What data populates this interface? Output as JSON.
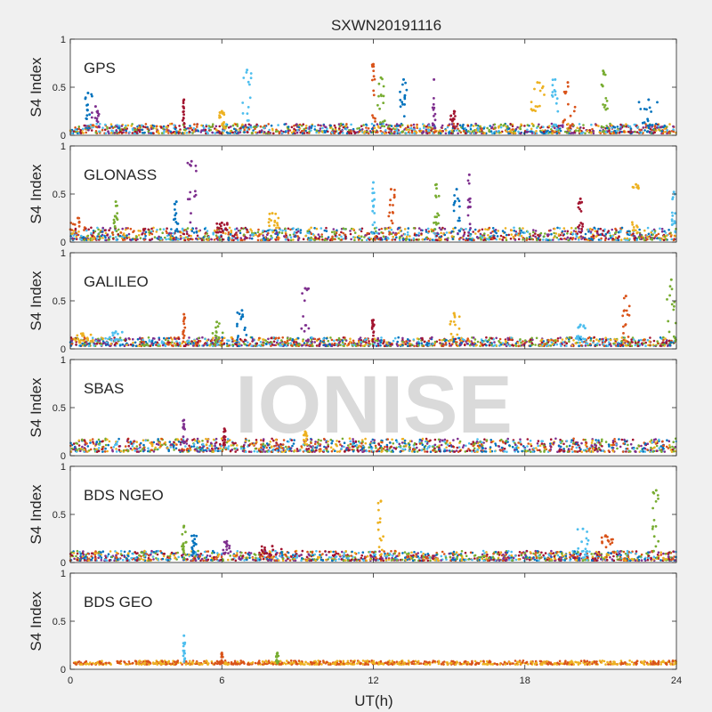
{
  "figure": {
    "title": "SXWN20191116",
    "watermark": "IONISE",
    "xlabel": "UT(h)",
    "ylabel": "S4 Index",
    "background": "#f0f0f0",
    "axes_background": "#ffffff"
  },
  "chart_data": [
    {
      "type": "scatter",
      "label": "GPS",
      "xlim": [
        0,
        24
      ],
      "ylim": [
        0,
        1
      ],
      "yticks": [
        0,
        0.5,
        1
      ],
      "ytick_labels": [
        "0",
        "0.5",
        "1"
      ],
      "xticks": [
        0,
        6,
        12,
        18,
        24
      ],
      "grid": false,
      "baseline": [
        0.02,
        0.12
      ],
      "spikes": [
        {
          "x": 0.7,
          "y": 0.44,
          "width": 0.35
        },
        {
          "x": 1.0,
          "y": 0.3,
          "width": 0.3
        },
        {
          "x": 4.5,
          "y": 0.37,
          "width": 0.1
        },
        {
          "x": 6.0,
          "y": 0.25,
          "width": 0.2
        },
        {
          "x": 7.0,
          "y": 0.68,
          "width": 0.35
        },
        {
          "x": 12.0,
          "y": 0.74,
          "width": 0.15
        },
        {
          "x": 12.3,
          "y": 0.6,
          "width": 0.3
        },
        {
          "x": 13.2,
          "y": 0.58,
          "width": 0.4
        },
        {
          "x": 14.4,
          "y": 0.58,
          "width": 0.1
        },
        {
          "x": 15.2,
          "y": 0.25,
          "width": 0.3
        },
        {
          "x": 18.5,
          "y": 0.55,
          "width": 0.6
        },
        {
          "x": 19.2,
          "y": 0.58,
          "width": 0.3
        },
        {
          "x": 19.7,
          "y": 0.55,
          "width": 0.6
        },
        {
          "x": 21.1,
          "y": 0.67,
          "width": 0.35
        },
        {
          "x": 22.9,
          "y": 0.37,
          "width": 0.8
        }
      ]
    },
    {
      "type": "scatter",
      "label": "GLONASS",
      "xlim": [
        0,
        24
      ],
      "ylim": [
        0,
        1
      ],
      "yticks": [
        0,
        0.5,
        1
      ],
      "ytick_labels": [
        "0",
        "0.5",
        "1"
      ],
      "xticks": [
        0,
        6,
        12,
        18,
        24
      ],
      "grid": false,
      "baseline": [
        0.02,
        0.15
      ],
      "spikes": [
        {
          "x": 0.3,
          "y": 0.25,
          "width": 0.6
        },
        {
          "x": 1.8,
          "y": 0.42,
          "width": 0.15
        },
        {
          "x": 4.2,
          "y": 0.42,
          "width": 0.2
        },
        {
          "x": 4.8,
          "y": 0.84,
          "width": 0.45
        },
        {
          "x": 6.0,
          "y": 0.2,
          "width": 0.5
        },
        {
          "x": 8.0,
          "y": 0.3,
          "width": 0.5
        },
        {
          "x": 12.0,
          "y": 0.62,
          "width": 0.1
        },
        {
          "x": 12.7,
          "y": 0.55,
          "width": 0.3
        },
        {
          "x": 14.5,
          "y": 0.6,
          "width": 0.25
        },
        {
          "x": 15.3,
          "y": 0.55,
          "width": 0.25
        },
        {
          "x": 15.8,
          "y": 0.7,
          "width": 0.1
        },
        {
          "x": 20.2,
          "y": 0.45,
          "width": 0.2
        },
        {
          "x": 22.4,
          "y": 0.6,
          "width": 0.3
        },
        {
          "x": 23.9,
          "y": 0.52,
          "width": 0.15
        }
      ]
    },
    {
      "type": "scatter",
      "label": "GALILEO",
      "xlim": [
        0,
        24
      ],
      "ylim": [
        0,
        1
      ],
      "yticks": [
        0,
        0.5,
        1
      ],
      "ytick_labels": [
        "0",
        "0.5",
        "1"
      ],
      "xticks": [
        0,
        6,
        12,
        18,
        24
      ],
      "grid": false,
      "baseline": [
        0.03,
        0.12
      ],
      "spikes": [
        {
          "x": 0.5,
          "y": 0.16,
          "width": 0.8
        },
        {
          "x": 1.8,
          "y": 0.18,
          "width": 0.6
        },
        {
          "x": 4.5,
          "y": 0.36,
          "width": 0.1
        },
        {
          "x": 5.8,
          "y": 0.28,
          "width": 0.5
        },
        {
          "x": 6.8,
          "y": 0.4,
          "width": 0.4
        },
        {
          "x": 9.3,
          "y": 0.63,
          "width": 0.3
        },
        {
          "x": 12.0,
          "y": 0.3,
          "width": 0.1
        },
        {
          "x": 15.2,
          "y": 0.37,
          "width": 0.5
        },
        {
          "x": 20.2,
          "y": 0.25,
          "width": 0.4
        },
        {
          "x": 22.0,
          "y": 0.55,
          "width": 0.3
        },
        {
          "x": 23.8,
          "y": 0.72,
          "width": 0.35
        }
      ]
    },
    {
      "type": "scatter",
      "label": "SBAS",
      "xlim": [
        0,
        24
      ],
      "ylim": [
        0,
        1
      ],
      "yticks": [
        0,
        0.5,
        1
      ],
      "ytick_labels": [
        "0",
        "0.5",
        "1"
      ],
      "xticks": [
        0,
        6,
        12,
        18,
        24
      ],
      "grid": false,
      "baseline": [
        0.04,
        0.18
      ],
      "spikes": [
        {
          "x": 4.5,
          "y": 0.37,
          "width": 0.08
        },
        {
          "x": 6.1,
          "y": 0.28,
          "width": 0.1
        },
        {
          "x": 9.3,
          "y": 0.25,
          "width": 0.15
        }
      ]
    },
    {
      "type": "scatter",
      "label": "BDS NGEO",
      "xlim": [
        0,
        24
      ],
      "ylim": [
        0,
        1
      ],
      "yticks": [
        0,
        0.5,
        1
      ],
      "ytick_labels": [
        "0",
        "0.5",
        "1"
      ],
      "xticks": [
        0,
        6,
        12,
        18,
        24
      ],
      "grid": false,
      "baseline": [
        0.02,
        0.12
      ],
      "spikes": [
        {
          "x": 4.5,
          "y": 0.38,
          "width": 0.2
        },
        {
          "x": 4.9,
          "y": 0.28,
          "width": 0.2
        },
        {
          "x": 6.2,
          "y": 0.22,
          "width": 0.3
        },
        {
          "x": 8.0,
          "y": 0.17,
          "width": 1.0
        },
        {
          "x": 12.3,
          "y": 0.64,
          "width": 0.25
        },
        {
          "x": 20.3,
          "y": 0.35,
          "width": 0.5
        },
        {
          "x": 21.2,
          "y": 0.28,
          "width": 0.6
        },
        {
          "x": 23.2,
          "y": 0.75,
          "width": 0.3
        }
      ]
    },
    {
      "type": "scatter",
      "label": "BDS GEO",
      "xlim": [
        0,
        24
      ],
      "ylim": [
        0,
        1
      ],
      "yticks": [
        0,
        0.5,
        1
      ],
      "ytick_labels": [
        "0",
        "0.5",
        "1"
      ],
      "xticks": [
        0,
        6,
        12,
        18,
        24
      ],
      "xtick_labels": [
        "0",
        "6",
        "12",
        "18",
        "24"
      ],
      "grid": false,
      "baseline": [
        0.05,
        0.09
      ],
      "spikes": [
        {
          "x": 4.5,
          "y": 0.35,
          "width": 0.08
        },
        {
          "x": 6.0,
          "y": 0.17,
          "width": 0.08
        },
        {
          "x": 8.2,
          "y": 0.17,
          "width": 0.1
        }
      ]
    }
  ],
  "series_colors": [
    "#0072bd",
    "#d95319",
    "#edb120",
    "#7e2f8e",
    "#77ac30",
    "#4dbeee",
    "#a2142f"
  ]
}
